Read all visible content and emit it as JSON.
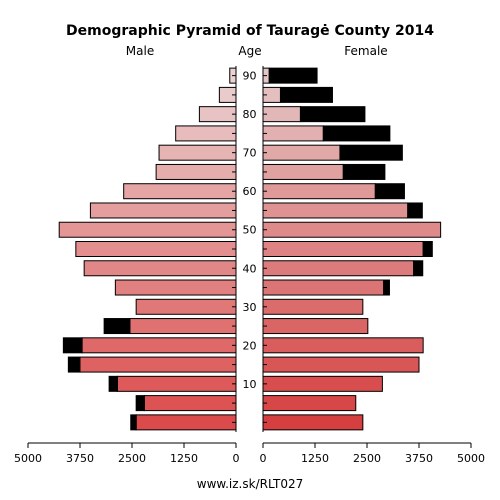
{
  "chart_data": {
    "type": "bar",
    "title": "Demographic Pyramid of Tauragė County 2014",
    "male_label": "Male",
    "female_label": "Female",
    "age_label": "Age",
    "source": "www.iz.sk/RLT027",
    "age_groups": [
      "0-4",
      "5-9",
      "10-14",
      "15-19",
      "20-24",
      "25-29",
      "30-34",
      "35-39",
      "40-44",
      "45-49",
      "50-54",
      "55-59",
      "60-64",
      "65-69",
      "70-74",
      "75-79",
      "80-84",
      "85-89",
      "90+"
    ],
    "age_ticks": [
      "10",
      "20",
      "30",
      "40",
      "50",
      "60",
      "70",
      "80",
      "90"
    ],
    "x_ticks_male": [
      "5000",
      "3750",
      "2500",
      "1250",
      "0"
    ],
    "x_ticks_female": [
      "0",
      "1250",
      "2500",
      "3750",
      "5000"
    ],
    "xlim": [
      0,
      5000
    ],
    "series": [
      {
        "name": "Male",
        "values": [
          2400,
          2200,
          2850,
          3750,
          3700,
          2550,
          2400,
          2900,
          3650,
          3850,
          4250,
          3500,
          2700,
          1920,
          1850,
          1450,
          880,
          400,
          150
        ],
        "excess": [
          130,
          200,
          200,
          280,
          450,
          620,
          0,
          0,
          0,
          0,
          0,
          0,
          0,
          0,
          0,
          0,
          0,
          0,
          0
        ]
      },
      {
        "name": "Female",
        "values": [
          2400,
          2230,
          2870,
          3750,
          3850,
          2520,
          2400,
          2900,
          3620,
          3850,
          4270,
          3480,
          2700,
          1930,
          1850,
          1450,
          900,
          420,
          150
        ],
        "excess": [
          0,
          0,
          0,
          0,
          0,
          0,
          0,
          140,
          220,
          220,
          0,
          350,
          700,
          1000,
          1500,
          1600,
          1550,
          1250,
          1150
        ]
      }
    ]
  }
}
